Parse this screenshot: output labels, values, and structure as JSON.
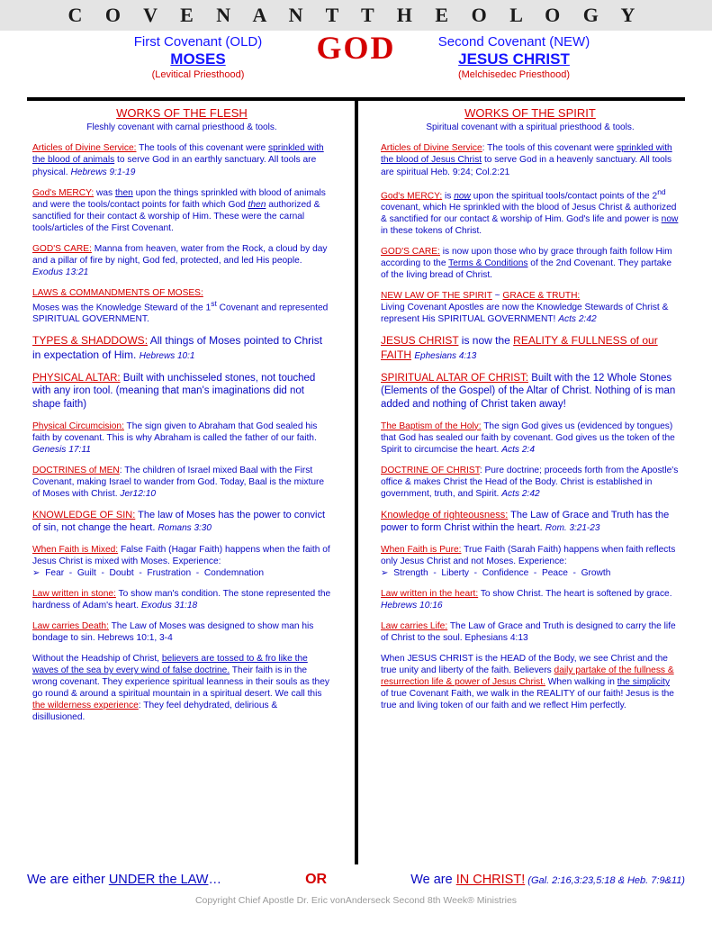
{
  "title": "C O V E N A N T   T H E O L O G Y",
  "god": "GOD",
  "left": {
    "covenant": "First Covenant (OLD)",
    "name": "MOSES",
    "priesthood": "(Levitical Priesthood)",
    "section_title": "WORKS OF THE FLESH",
    "section_sub": "Fleshly covenant with carnal priesthood & tools."
  },
  "right": {
    "covenant": "Second Covenant (NEW)",
    "name": "JESUS CHRIST",
    "priesthood": "(Melchisedec Priesthood)",
    "section_title": "WORKS OF THE SPIRIT",
    "section_sub": "Spiritual covenant with a spiritual priesthood & tools."
  },
  "footer": {
    "left": "We are either ",
    "left_u": "UNDER the LAW",
    "dots": "…",
    "or": "OR",
    "right_pre": "We are ",
    "right_u": "IN CHRIST!",
    "refs": " (Gal. 2:16,3:23,5:18 & Heb. 7:9&11)"
  },
  "copyright": "Copyright Chief Apostle Dr. Eric vonAnderseck    Second 8th Week® Ministries"
}
